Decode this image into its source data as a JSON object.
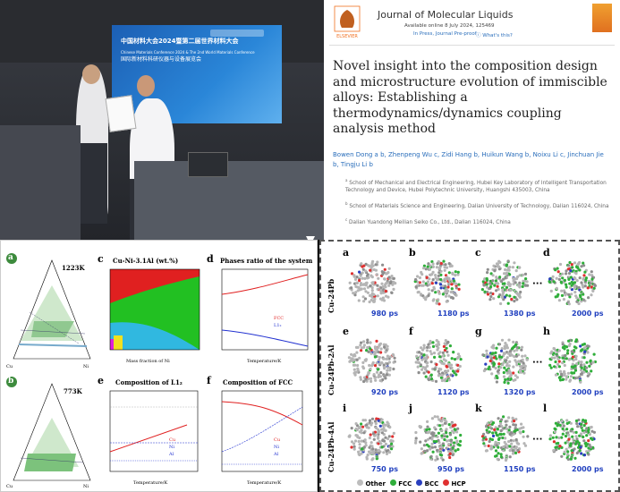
{
  "photo": {
    "banner_cn": "中国材料大会2024暨第二届世界材料大会",
    "banner_en1": "Chinese Materials Conference 2024 & The 2nd World Materials Conference",
    "banner_cn2": "国际新材料科研仪器与设备展览会"
  },
  "paper": {
    "journal": "Journal of Molecular Liquids",
    "available": "Available online 8 July 2024, 125469",
    "status": "In Press, Journal Pre-proof",
    "whats_this": "What's this?",
    "publisher": "ELSEVIER",
    "title": "Novel insight into the composition design and microstructure evolution of immiscible alloys: Establishing a thermodynamics/dynamics coupling analysis method",
    "authors": "Bowen Dong a b, Zhenpeng Wu c, Zidi Hang b, Huikun Wang b, Noixu Li c, Jinchuan Jie b, Tingju Li b",
    "affil_a": "School of Mechanical and Electrical Engineering, Hubei Key Laboratory of Intelligent Transportation Technology and Device, Hubei Polytechnic University, Huangshi 435003, China",
    "affil_b": "School of Materials Science and Engineering, Dalian University of Technology, Dalian 116024, China",
    "affil_c": "Dalian Yuandong Meilian Seiko Co., Ltd., Dalian 116024, China"
  },
  "figL": {
    "a_label": "a",
    "a_temp": "1223K",
    "b_label": "b",
    "b_temp": "773K",
    "c_label": "c",
    "c_title": "Cu-Ni-3.1Al (wt.%)",
    "c_xlabel": "Mass fraction of Ni",
    "c_ylabel": "Temperature/K",
    "d_label": "d",
    "d_title": "Phases ratio of the system",
    "d_xlabel": "Temperature/K",
    "d_ylabel": "Molar fraction of the phases",
    "d_legend": [
      "FCC",
      "L1₂"
    ],
    "e_label": "e",
    "e_title": "Composition of L1₂",
    "e_xlabel": "Temperature/K",
    "e_legend": [
      "Cu",
      "Ni",
      "Al"
    ],
    "f_label": "f",
    "f_title": "Composition of FCC",
    "f_xlabel": "Temperature/K",
    "f_legend": [
      "Cu",
      "Ni",
      "Al"
    ]
  },
  "figR": {
    "rows": [
      "Cu-24Pb",
      "Cu-24Pb-2Al",
      "Cu-24Pb-4Al"
    ],
    "labels": [
      "a",
      "b",
      "c",
      "d",
      "e",
      "f",
      "g",
      "h",
      "i",
      "j",
      "k",
      "l"
    ],
    "times": [
      "980 ps",
      "1180 ps",
      "1380 ps",
      "2000 ps",
      "920 ps",
      "1120 ps",
      "1320 ps",
      "2000 ps",
      "750 ps",
      "950 ps",
      "1150 ps",
      "2000 ps"
    ],
    "legend": [
      "Other",
      "FCC",
      "BCC",
      "HCP"
    ],
    "legend_colors": [
      "#bdbdbd",
      "#2fae3a",
      "#2a3fbf",
      "#e03030"
    ]
  }
}
